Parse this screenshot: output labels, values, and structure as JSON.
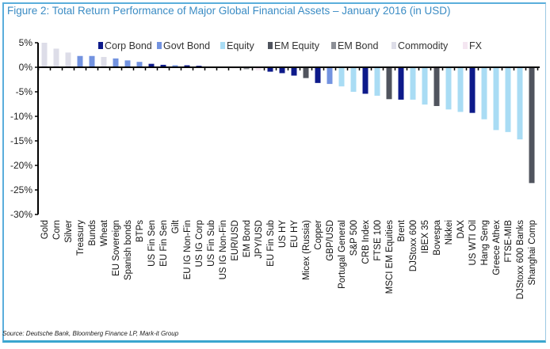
{
  "chart_data": {
    "type": "bar",
    "title": "Figure 2: Total Return Performance of Major Global Financial Assets – January 2016 (in USD)",
    "source": "Source: Deutsche Bank, Bloomberg Finance LP, Mark-it Group",
    "xlabel": "",
    "ylabel": "",
    "ylim": [
      -30,
      5
    ],
    "yticks": [
      5,
      0,
      -5,
      -10,
      -15,
      -20,
      -25,
      -30
    ],
    "ytick_labels": [
      "5%",
      "0%",
      "-5%",
      "-10%",
      "-15%",
      "-20%",
      "-25%",
      "-30%"
    ],
    "legend_position": "top",
    "legend": [
      {
        "name": "Corp Bond",
        "color": "#0d1a8a"
      },
      {
        "name": "Govt Bond",
        "color": "#7393e0"
      },
      {
        "name": "Equity",
        "color": "#a9dcf4"
      },
      {
        "name": "EM Equity",
        "color": "#50545e"
      },
      {
        "name": "EM Bond",
        "color": "#8c8f96"
      },
      {
        "name": "Commodity",
        "color": "#dddde8"
      },
      {
        "name": "FX",
        "color": "#f4e6f1"
      }
    ],
    "categories": [
      "Gold",
      "Corn",
      "Silver",
      "Treasury",
      "Bunds",
      "Wheat",
      "EU Sovereign",
      "Spanish bonds",
      "BTPs",
      "US Fin Sen",
      "EU Fin Sen",
      "Gilt",
      "EU IG Non-Fin",
      "US IG Corp",
      "US Fin Sub",
      "US IG Non-Fin",
      "EUR/USD",
      "EM Bond",
      "JPY/USD",
      "EU Fin Sub",
      "US HY",
      "EU HY",
      "Micex (Russia)",
      "Copper",
      "GBP/USD",
      "Portugal General",
      "S&P 500",
      "CRB Index",
      "FTSE 100",
      "MSCI EM Equities",
      "Brent",
      "DJStoxx 600",
      "IBEX 35",
      "Bovespa",
      "Nikkei",
      "DAX",
      "US WTI Oil",
      "Hang Seng",
      "Greece Athex",
      "FTSE-MIB",
      "DJStoxx 600 Banks",
      "Shanghai Comp"
    ],
    "values": [
      5.0,
      3.8,
      3.0,
      2.3,
      2.3,
      2.1,
      1.8,
      1.4,
      1.1,
      0.7,
      0.5,
      0.4,
      0.4,
      0.3,
      0.1,
      0.1,
      -0.2,
      -0.4,
      -0.6,
      -0.9,
      -1.2,
      -1.7,
      -2.2,
      -3.2,
      -3.4,
      -3.9,
      -5.0,
      -5.4,
      -5.8,
      -6.5,
      -6.6,
      -6.6,
      -7.6,
      -7.9,
      -8.6,
      -9.1,
      -9.3,
      -10.6,
      -12.8,
      -13.2,
      -14.7,
      -23.6
    ],
    "series_of_bar": [
      "Commodity",
      "Commodity",
      "Commodity",
      "Govt Bond",
      "Govt Bond",
      "Commodity",
      "Govt Bond",
      "Govt Bond",
      "Govt Bond",
      "Corp Bond",
      "Corp Bond",
      "Govt Bond",
      "Corp Bond",
      "Corp Bond",
      "Corp Bond",
      "Corp Bond",
      "FX",
      "EM Bond",
      "FX",
      "Corp Bond",
      "Corp Bond",
      "Corp Bond",
      "EM Equity",
      "Corp Bond",
      "Govt Bond",
      "Equity",
      "Equity",
      "Corp Bond",
      "Equity",
      "EM Equity",
      "Corp Bond",
      "Equity",
      "Equity",
      "EM Equity",
      "Equity",
      "Equity",
      "Corp Bond",
      "Equity",
      "Equity",
      "Equity",
      "Equity",
      "EM Equity"
    ]
  }
}
